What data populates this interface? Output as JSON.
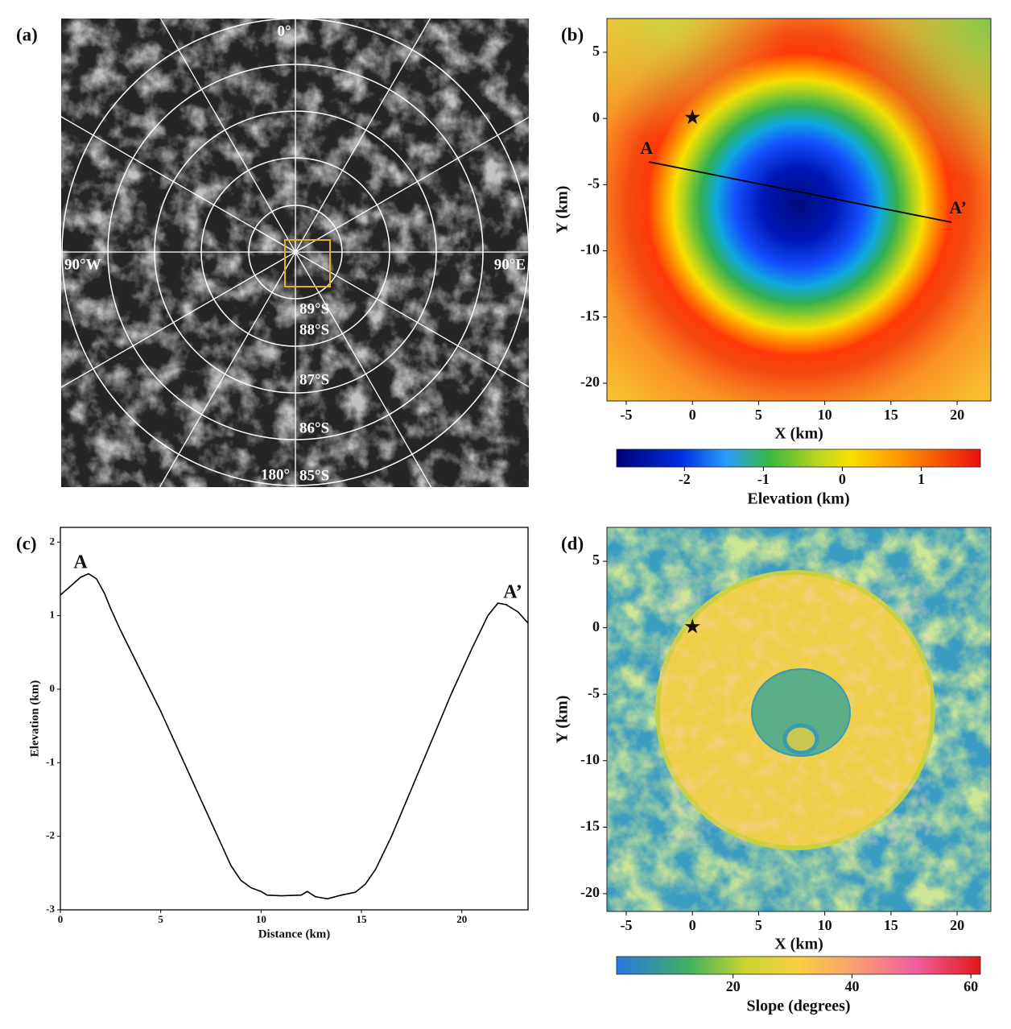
{
  "chart_data": [
    {
      "type": "image",
      "panel_label": "(a)",
      "labels": {
        "top": "0°",
        "left": "90°W",
        "right": "90°E",
        "bottom": "180°"
      },
      "ring_labels": [
        "89°S",
        "88°S",
        "87°S",
        "86°S",
        "85°S"
      ]
    },
    {
      "type": "heatmap",
      "panel_label": "(b)",
      "xlabel": "X (km)",
      "ylabel": "Y (km)",
      "xlim": [
        -6.46,
        22.55
      ],
      "ylim": [
        -21.34,
        7.55
      ],
      "xticks": [
        -5,
        0,
        5,
        10,
        15,
        20
      ],
      "yticks": [
        5,
        0,
        -5,
        -10,
        -15,
        -20
      ],
      "colorbar": {
        "label": "Elevation (km)",
        "lim": [
          -2.86,
          1.75
        ],
        "ticks": [
          -2,
          -1,
          0,
          1
        ]
      },
      "marker": {
        "x": 0,
        "y": 0
      },
      "profile": {
        "start_label": "A",
        "end_label": "A’",
        "x": [
          -3.28,
          19.57
        ],
        "y": [
          -3.28,
          -7.84
        ]
      }
    },
    {
      "type": "line",
      "panel_label": "(c)",
      "xlabel": "Distance (km)",
      "ylabel": "Elevation (km)",
      "xlim": [
        0,
        23.3
      ],
      "ylim": [
        -3,
        2.2
      ],
      "xticks": [
        0,
        5,
        10,
        15,
        20
      ],
      "yticks": [
        -3,
        -2,
        -1,
        0,
        1,
        2
      ],
      "color": "#000000",
      "x": [
        0,
        0.5,
        1,
        1.4,
        1.8,
        2.2,
        2.5,
        3,
        4,
        5,
        6,
        7,
        8,
        8.5,
        9,
        9.5,
        10,
        10.3,
        11,
        12,
        12.3,
        12.7,
        13.3,
        14,
        14.7,
        15.2,
        15.7,
        16.5,
        17.5,
        18.5,
        19.5,
        20.5,
        21.3,
        21.8,
        22.2,
        22.8,
        23.3
      ],
      "values": [
        1.28,
        1.4,
        1.52,
        1.57,
        1.5,
        1.3,
        1.1,
        0.8,
        0.25,
        -0.3,
        -0.9,
        -1.5,
        -2.1,
        -2.4,
        -2.6,
        -2.7,
        -2.75,
        -2.8,
        -2.81,
        -2.8,
        -2.75,
        -2.82,
        -2.85,
        -2.8,
        -2.76,
        -2.65,
        -2.45,
        -2.0,
        -1.35,
        -0.7,
        -0.05,
        0.55,
        1.0,
        1.17,
        1.15,
        1.05,
        0.9
      ],
      "annotations": [
        "A",
        "A’"
      ]
    },
    {
      "type": "slopemap",
      "panel_label": "(d)",
      "xlabel": "X (km)",
      "ylabel": "Y (km)",
      "xlim": [
        -6.46,
        22.55
      ],
      "ylim": [
        -21.34,
        7.55
      ],
      "xticks": [
        -5,
        0,
        5,
        10,
        15,
        20
      ],
      "yticks": [
        5,
        0,
        -5,
        -10,
        -15,
        -20
      ],
      "colorbar": {
        "label": "Slope (degrees)",
        "lim": [
          0.4,
          61.6
        ],
        "ticks": [
          20,
          40,
          60
        ]
      },
      "marker": {
        "x": 0,
        "y": 0
      }
    }
  ]
}
